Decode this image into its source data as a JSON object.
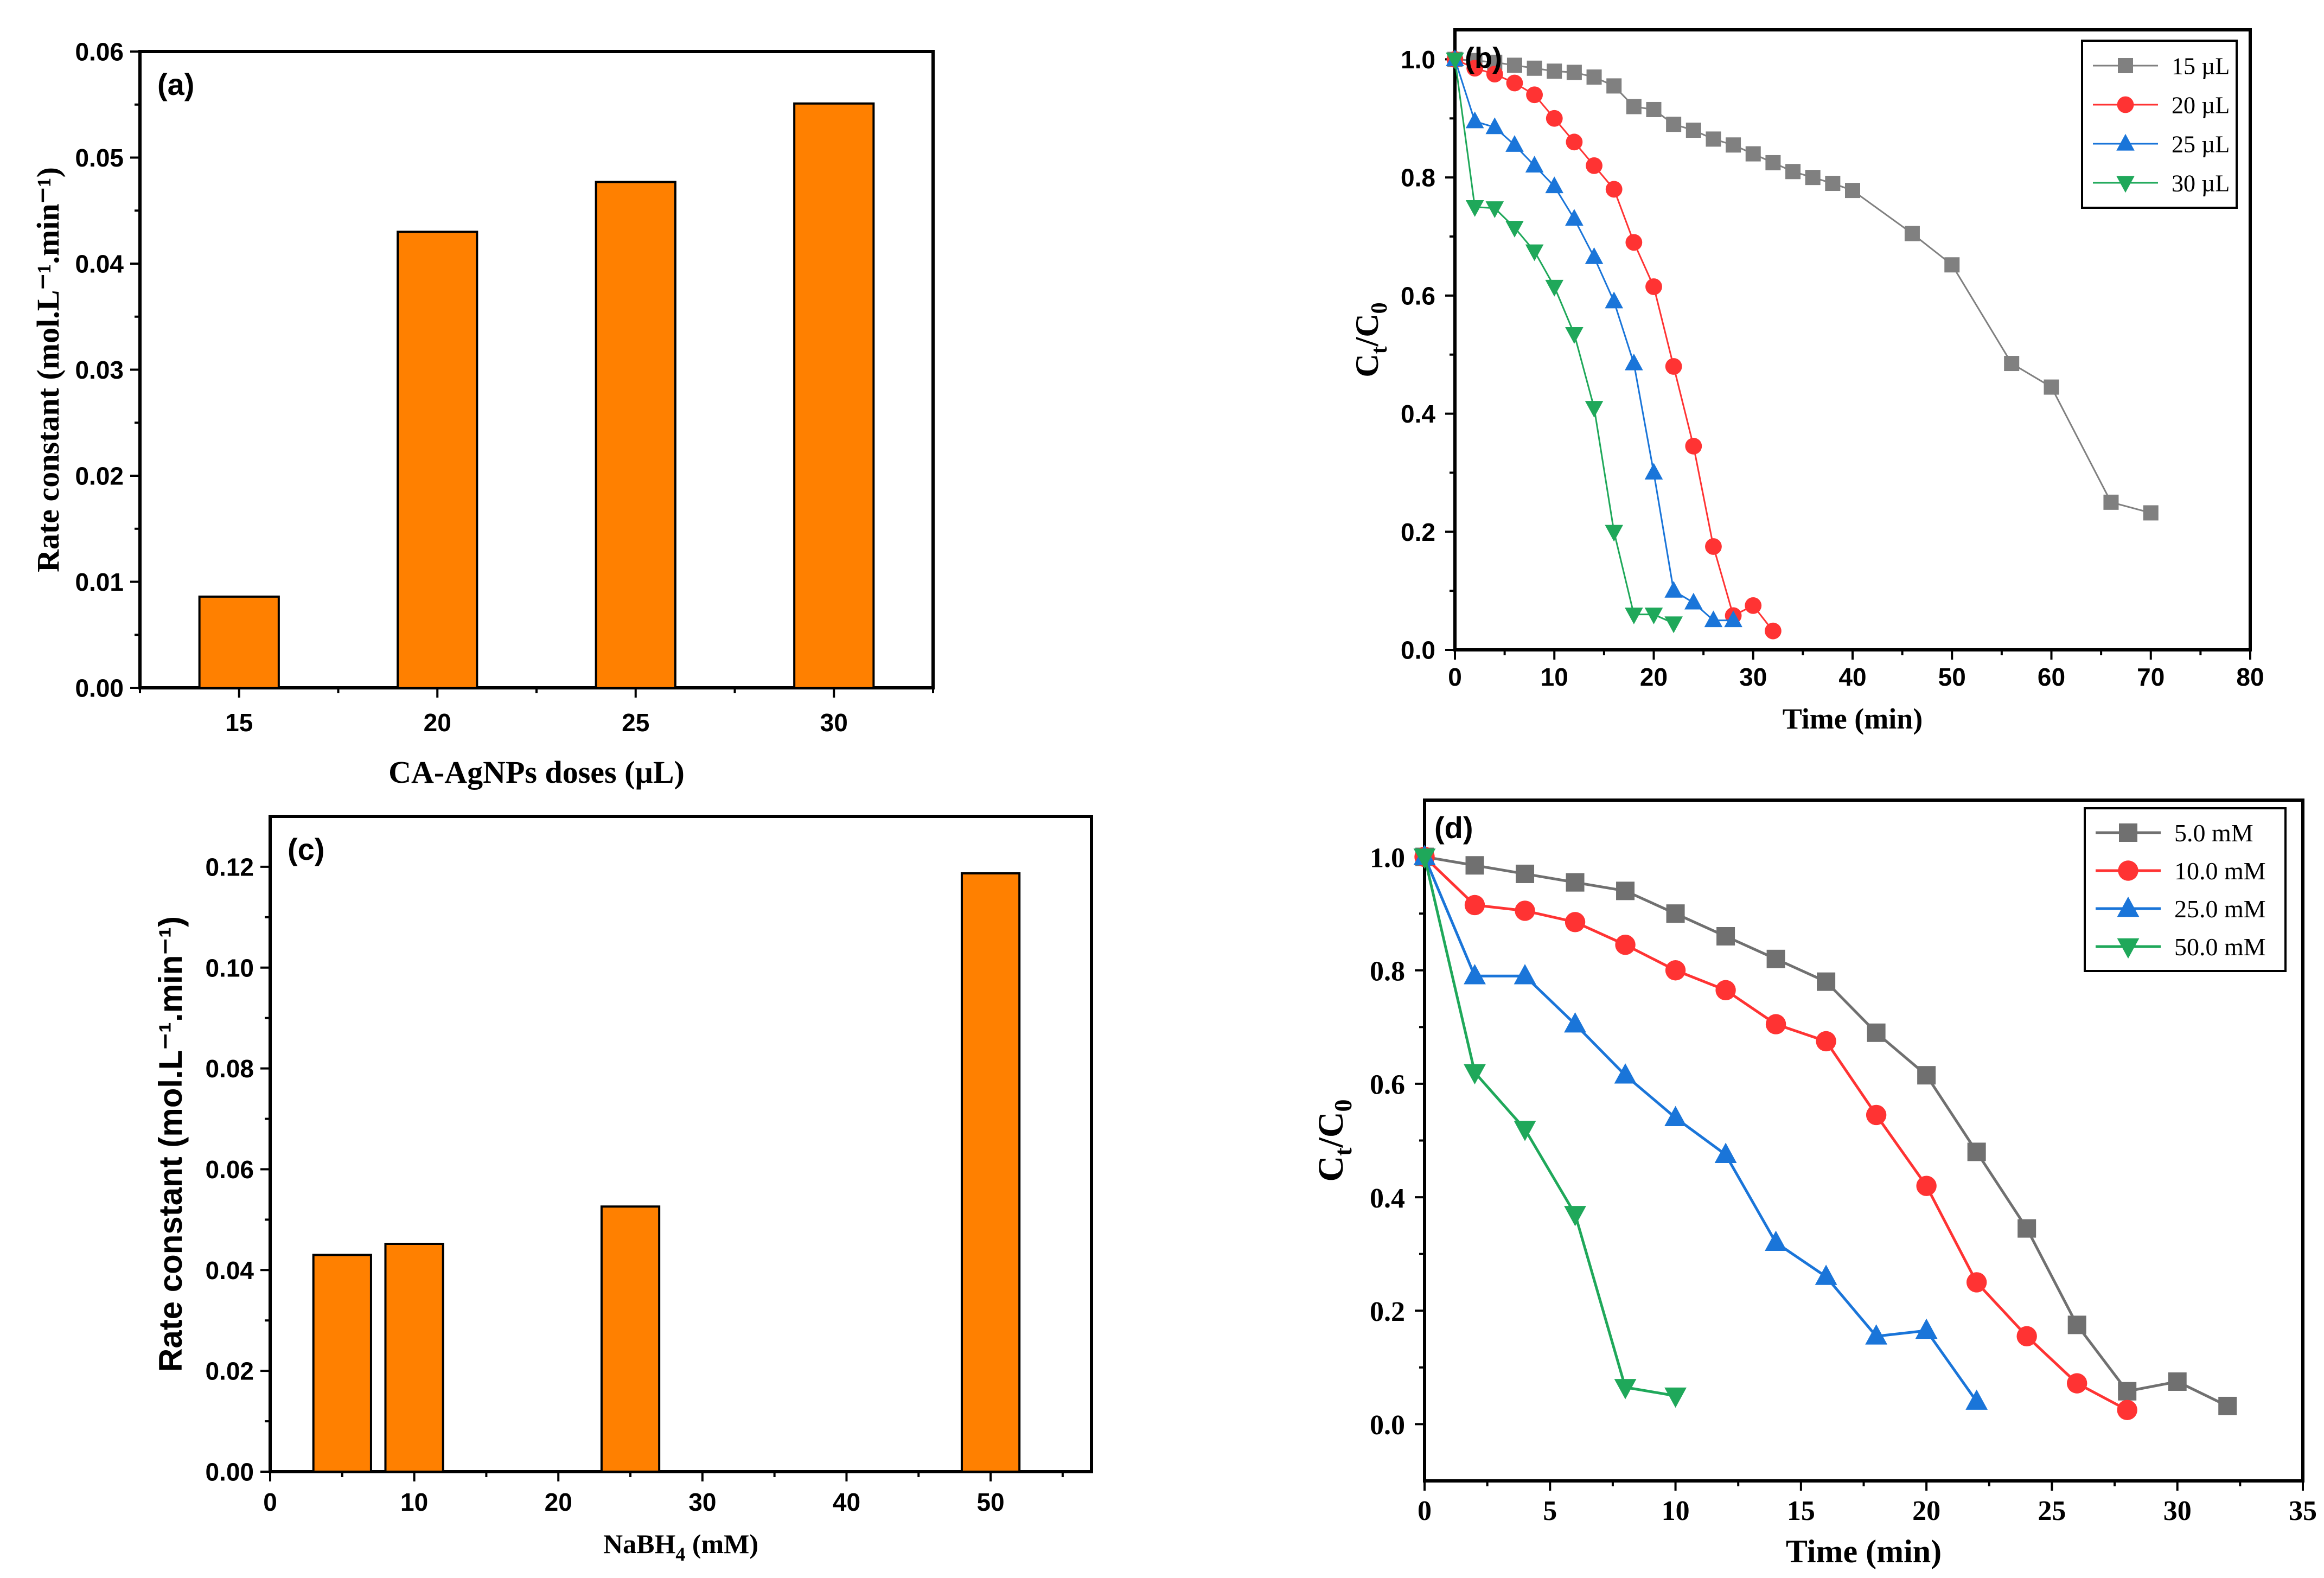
{
  "chart_data": [
    {
      "id": "a",
      "type": "bar",
      "panel_label": "(a)",
      "categories": [
        "15",
        "20",
        "25",
        "30"
      ],
      "values": [
        0.0086,
        0.043,
        0.0477,
        0.0551
      ],
      "bar_color": "#ff8000",
      "xlabel": "CA-AgNPs doses (µL)",
      "ylabel": "Rate constant (mol.L⁻¹.min⁻¹)",
      "ylim": [
        0,
        0.06
      ],
      "yticks": [
        0.0,
        0.01,
        0.02,
        0.03,
        0.04,
        0.05,
        0.06
      ],
      "ytick_labels": [
        "0.00",
        "0.01",
        "0.02",
        "0.03",
        "0.04",
        "0.05",
        "0.06"
      ]
    },
    {
      "id": "b",
      "type": "line",
      "panel_label": "(b)",
      "xlabel": "Time (min)",
      "ylabel_main": "C",
      "ylabel_sub1": "t",
      "ylabel_mid": "/C",
      "ylabel_sub2": "0",
      "xlim": [
        0,
        80
      ],
      "ylim": [
        0,
        1.05
      ],
      "xticks": [
        0,
        10,
        20,
        30,
        40,
        50,
        60,
        70,
        80
      ],
      "yticks": [
        0.0,
        0.2,
        0.4,
        0.6,
        0.8,
        1.0
      ],
      "ytick_labels": [
        "0.0",
        "0.2",
        "0.4",
        "0.6",
        "0.8",
        "1.0"
      ],
      "legend_position": "top-right",
      "series": [
        {
          "name": "15 µL",
          "color": "#808080",
          "marker": "square",
          "x": [
            0,
            2,
            4,
            6,
            8,
            10,
            12,
            14,
            16,
            18,
            20,
            22,
            24,
            26,
            28,
            30,
            32,
            34,
            36,
            38,
            40,
            46,
            50,
            56,
            60,
            66,
            70
          ],
          "y": [
            1.0,
            0.998,
            0.995,
            0.99,
            0.985,
            0.98,
            0.978,
            0.97,
            0.955,
            0.92,
            0.915,
            0.89,
            0.88,
            0.865,
            0.855,
            0.84,
            0.825,
            0.81,
            0.8,
            0.79,
            0.778,
            0.705,
            0.652,
            0.485,
            0.445,
            0.25,
            0.232
          ]
        },
        {
          "name": "20 µL",
          "color": "#ff3333",
          "marker": "circle",
          "x": [
            0,
            2,
            4,
            6,
            8,
            10,
            12,
            14,
            16,
            18,
            20,
            22,
            24,
            26,
            28,
            30,
            32
          ],
          "y": [
            1.0,
            0.985,
            0.975,
            0.96,
            0.94,
            0.9,
            0.86,
            0.82,
            0.78,
            0.69,
            0.615,
            0.48,
            0.345,
            0.175,
            0.058,
            0.075,
            0.032
          ]
        },
        {
          "name": "25 µL",
          "color": "#1a75d9",
          "marker": "triangle-up",
          "x": [
            0,
            2,
            4,
            6,
            8,
            10,
            12,
            14,
            16,
            18,
            20,
            22,
            24,
            26,
            28
          ],
          "y": [
            1.0,
            0.895,
            0.885,
            0.855,
            0.82,
            0.785,
            0.73,
            0.665,
            0.59,
            0.485,
            0.3,
            0.1,
            0.08,
            0.05,
            0.05
          ]
        },
        {
          "name": "30 µL",
          "color": "#1fa85a",
          "marker": "triangle-down",
          "x": [
            0,
            2,
            4,
            6,
            8,
            10,
            12,
            14,
            16,
            18,
            20,
            22
          ],
          "y": [
            1.0,
            0.75,
            0.748,
            0.715,
            0.675,
            0.615,
            0.535,
            0.41,
            0.2,
            0.06,
            0.06,
            0.045
          ]
        }
      ]
    },
    {
      "id": "c",
      "type": "bar",
      "panel_label": "(c)",
      "categories": [
        "5",
        "10",
        "25",
        "50"
      ],
      "x": [
        5,
        10,
        25,
        50
      ],
      "values": [
        0.043,
        0.0452,
        0.0526,
        0.1187
      ],
      "bar_color": "#ff8000",
      "xlabel_main": "NaBH",
      "xlabel_sub": "4",
      "xlabel_unit": " (mM)",
      "ylabel": "Rate constant (mol.L⁻¹.min⁻¹)",
      "xlim": [
        0,
        57
      ],
      "ylim": [
        0,
        0.13
      ],
      "xticks": [
        0,
        10,
        20,
        30,
        40,
        50
      ],
      "yticks": [
        0.0,
        0.02,
        0.04,
        0.06,
        0.08,
        0.1,
        0.12
      ],
      "ytick_labels": [
        "0.00",
        "0.02",
        "0.04",
        "0.06",
        "0.08",
        "0.10",
        "0.12"
      ]
    },
    {
      "id": "d",
      "type": "line",
      "panel_label": "(d)",
      "xlabel": "Time (min)",
      "ylabel_main": "C",
      "ylabel_sub1": "t",
      "ylabel_mid": "/C",
      "ylabel_sub2": "0",
      "xlim": [
        0,
        35
      ],
      "ylim": [
        -0.1,
        1.1
      ],
      "xticks": [
        0,
        5,
        10,
        15,
        20,
        25,
        30,
        35
      ],
      "yticks": [
        0.0,
        0.2,
        0.4,
        0.6,
        0.8,
        1.0
      ],
      "ytick_labels": [
        "0.0",
        "0.2",
        "0.4",
        "0.6",
        "0.8",
        "1.0"
      ],
      "legend_position": "top-right",
      "series": [
        {
          "name": "5.0 mM",
          "color": "#707070",
          "marker": "square",
          "x": [
            0,
            2,
            4,
            6,
            8,
            10,
            12,
            14,
            16,
            18,
            20,
            22,
            24,
            26,
            28,
            30,
            32
          ],
          "y": [
            1.0,
            0.985,
            0.97,
            0.955,
            0.94,
            0.9,
            0.86,
            0.82,
            0.78,
            0.69,
            0.615,
            0.48,
            0.345,
            0.175,
            0.058,
            0.075,
            0.032
          ]
        },
        {
          "name": "10.0 mM",
          "color": "#ff3333",
          "marker": "circle",
          "x": [
            0,
            2,
            4,
            6,
            8,
            10,
            12,
            14,
            16,
            18,
            20,
            22,
            24,
            26,
            28
          ],
          "y": [
            1.0,
            0.915,
            0.905,
            0.885,
            0.845,
            0.8,
            0.765,
            0.705,
            0.675,
            0.545,
            0.42,
            0.25,
            0.155,
            0.072,
            0.025
          ]
        },
        {
          "name": "25.0 mM",
          "color": "#1a75d9",
          "marker": "triangle-up",
          "x": [
            0,
            2,
            4,
            6,
            8,
            10,
            12,
            14,
            16,
            18,
            20,
            22
          ],
          "y": [
            1.0,
            0.79,
            0.79,
            0.705,
            0.615,
            0.54,
            0.475,
            0.32,
            0.26,
            0.155,
            0.165,
            0.04
          ]
        },
        {
          "name": "50.0 mM",
          "color": "#1fa85a",
          "marker": "triangle-down",
          "x": [
            0,
            2,
            4,
            6,
            8,
            10
          ],
          "y": [
            1.0,
            0.62,
            0.52,
            0.37,
            0.065,
            0.05
          ]
        }
      ]
    }
  ]
}
